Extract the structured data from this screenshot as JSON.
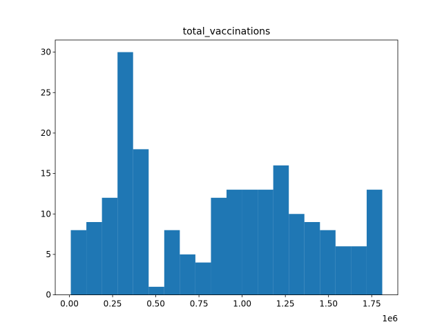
{
  "chart_data": {
    "type": "bar",
    "title": "total_vaccinations",
    "xlabel": "",
    "ylabel": "",
    "x_offset_label": "1e6",
    "bar_color": "#1f77b4",
    "bin_edges": [
      0.008,
      0.09815,
      0.1883,
      0.27845,
      0.3686,
      0.45875,
      0.5489,
      0.63905,
      0.7292,
      0.81935,
      0.9095,
      0.99965,
      1.0898,
      1.17995,
      1.2701,
      1.36025,
      1.4504,
      1.54055,
      1.6307,
      1.72085,
      1.811
    ],
    "values": [
      8,
      9,
      12,
      30,
      18,
      1,
      8,
      5,
      4,
      12,
      13,
      13,
      13,
      16,
      10,
      9,
      8,
      6,
      6,
      13
    ],
    "xlim": [
      -0.082,
      1.901
    ],
    "ylim": [
      0,
      31.5
    ],
    "x_ticks": [
      0.0,
      0.25,
      0.5,
      0.75,
      1.0,
      1.25,
      1.5,
      1.75
    ],
    "x_tick_labels": [
      "0.00",
      "0.25",
      "0.50",
      "0.75",
      "1.00",
      "1.25",
      "1.50",
      "1.75"
    ],
    "y_ticks": [
      0,
      5,
      10,
      15,
      20,
      25,
      30
    ],
    "y_tick_labels": [
      "0",
      "5",
      "10",
      "15",
      "20",
      "25",
      "30"
    ],
    "grid": false,
    "legend": "none"
  }
}
